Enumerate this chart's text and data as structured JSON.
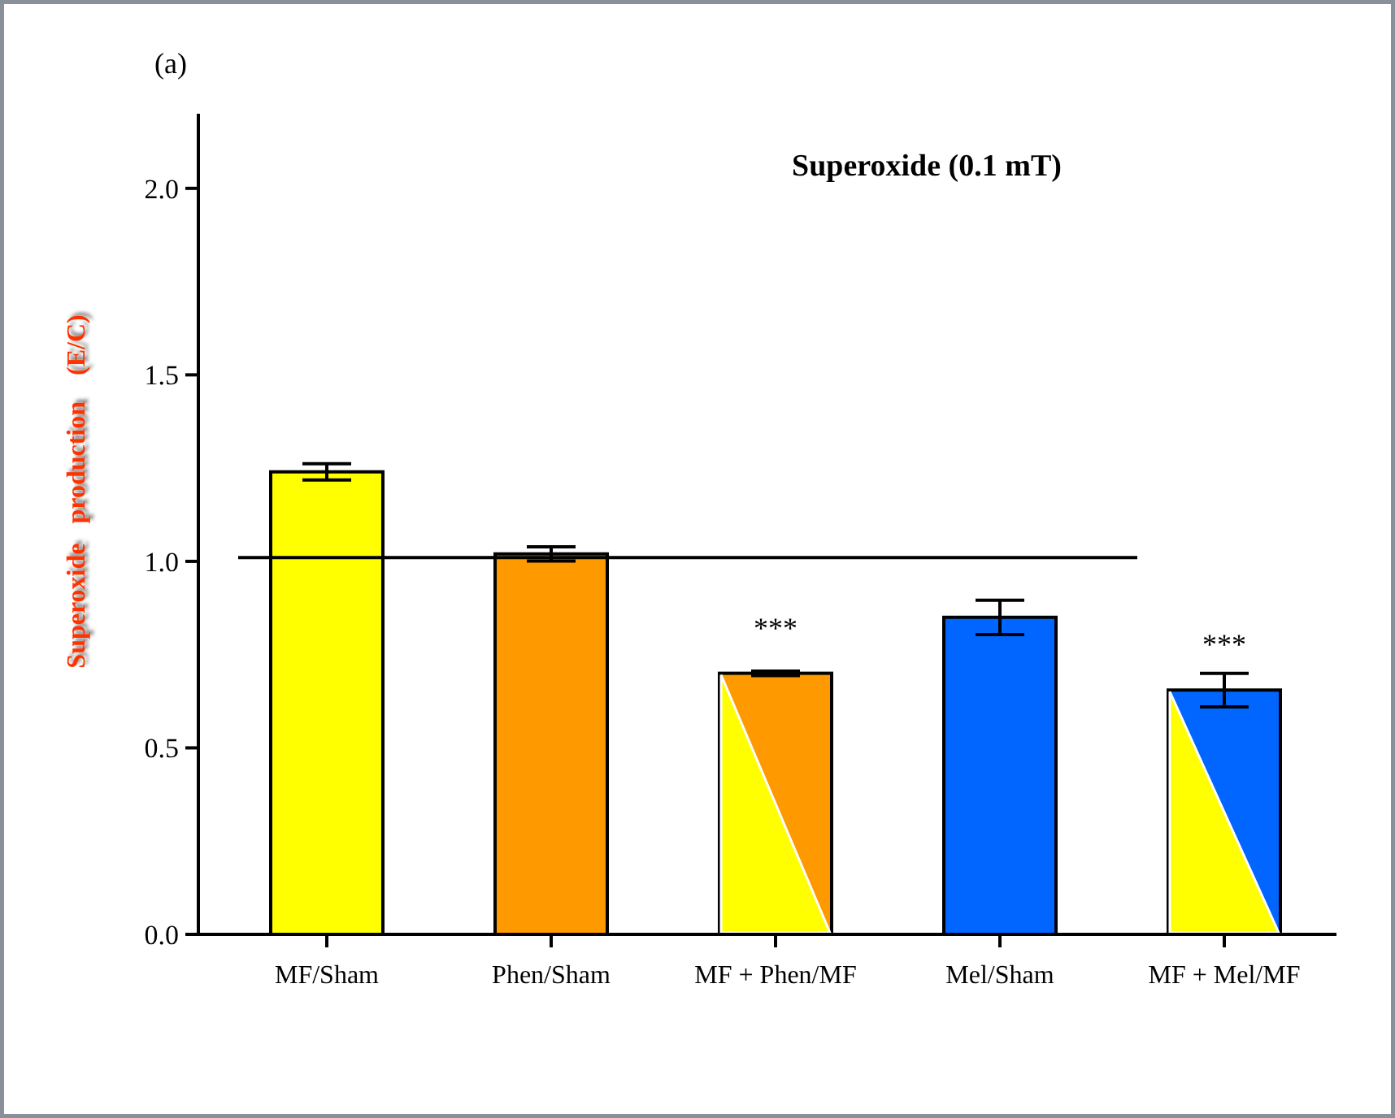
{
  "chart_data": {
    "type": "bar",
    "title": "Superoxide (0.1 mT)",
    "ylabel": "Superoxide   production    (E/C)",
    "categories": [
      "MF/Sham",
      "Phen/Sham",
      "MF + Phen/MF",
      "Mel/Sham",
      "MF + Mel/MF"
    ],
    "values": [
      1.24,
      1.02,
      0.7,
      0.85,
      0.655
    ],
    "colors": [
      "#ffff00",
      "#ff9900",
      "#ff9900",
      "#0066ff",
      "#0066ff"
    ],
    "errors": [
      0.022,
      0.019,
      0.006,
      0.046,
      0.045
    ],
    "ylim": [
      0,
      2.2
    ],
    "yticks": [
      {
        "value": 0,
        "label": "0.0"
      },
      {
        "value": 0.5,
        "label": "0.5"
      },
      {
        "value": 1,
        "label": "1.0"
      },
      {
        "value": 1.5,
        "label": "1.5"
      },
      {
        "value": 2,
        "label": "2.0"
      }
    ],
    "ref_lines": [
      {
        "axis": "y",
        "value": 1.01,
        "color": "#000000"
      }
    ],
    "annotations": [
      "(a)",
      "***",
      "***"
    ],
    "grid": false
  }
}
